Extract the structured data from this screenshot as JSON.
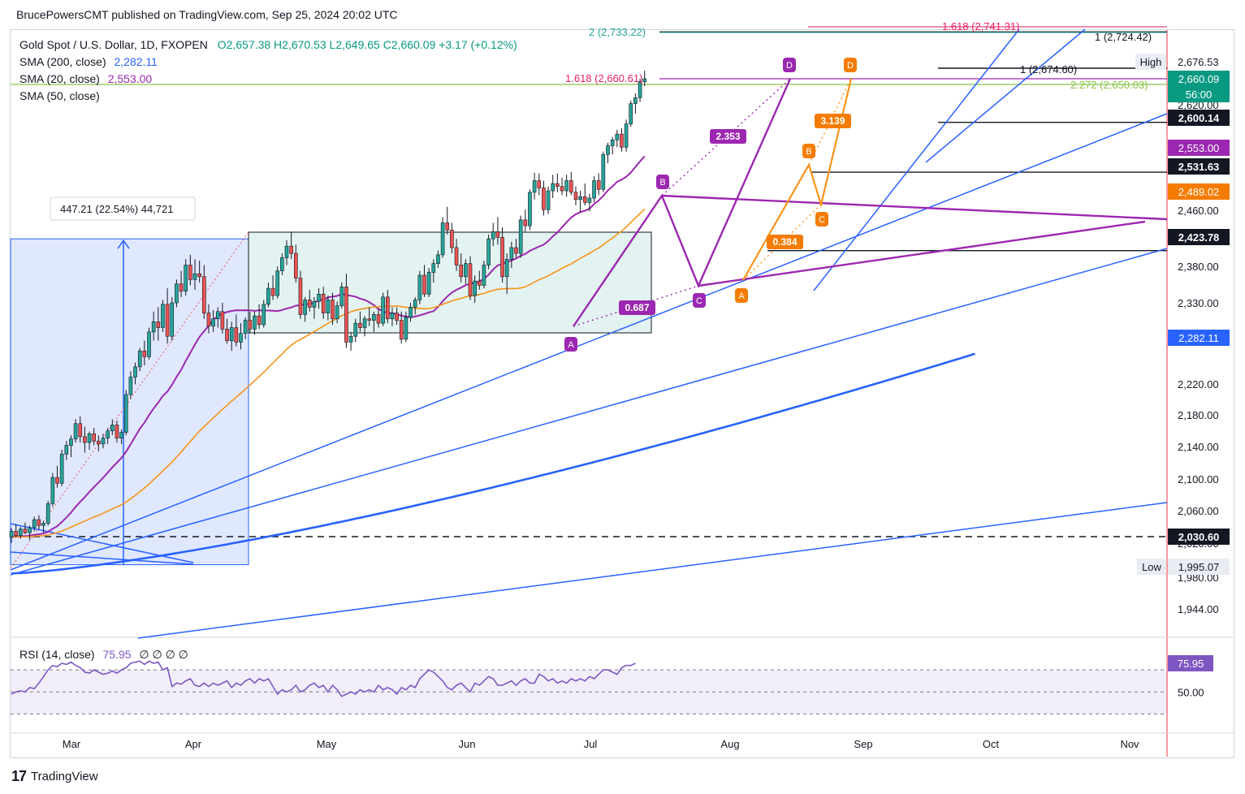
{
  "publisher_line": "BrucePowersCMT published on TradingView.com, Sep 25, 2024 20:02 UTC",
  "legend": {
    "symbol": "Gold Spot / U.S. Dollar, 1D, FXOPEN",
    "ohlc": "O2,657.38 H2,670.53 L2,649.65 C2,660.09 +3.17 (+0.12%)",
    "sma200_label": "SMA (200, close)",
    "sma200_value": "2,282.11",
    "sma20_label": "SMA (20, close)",
    "sma20_value": "2,553.00",
    "sma50_label": "SMA (50, close)"
  },
  "rsi_legend": {
    "label": "RSI (14, close)",
    "value": "75.95",
    "extra": "∅ ∅ ∅ ∅"
  },
  "footer": {
    "brand": "TradingView"
  },
  "colors": {
    "up": "#26a69a",
    "down": "#ef5350",
    "sma20": "#9c27b0",
    "sma50": "#f7931a",
    "sma200": "#2962ff",
    "trend": "#2962ff",
    "rsi": "#7e57c2",
    "fib": "#e91e63",
    "fib_green": "#8bc34a"
  },
  "chart_data": [
    {
      "type": "candlestick",
      "title": "Gold Spot / U.S. Dollar, 1D, FXOPEN",
      "x_ticks": [
        "Mar",
        "Apr",
        "May",
        "Jun",
        "Jul",
        "Aug",
        "Sep",
        "Oct",
        "Nov"
      ],
      "y_ticks": [
        "2,676.53",
        "2,620.00",
        "2,460.00",
        "2,380.00",
        "2,330.00",
        "2,220.00",
        "2,180.00",
        "2,140.00",
        "2,100.00",
        "2,060.00",
        "2,020.00",
        "1,980.00",
        "1,944.00"
      ],
      "ylim": [
        1920,
        2760
      ],
      "price_labels": [
        {
          "text": "High",
          "kind": "note"
        },
        {
          "text": "2,660.09",
          "kind": "last_price"
        },
        {
          "text": "56:00",
          "kind": "countdown"
        },
        {
          "text": "2,600.14",
          "kind": "level"
        },
        {
          "text": "2,553.00",
          "kind": "sma20"
        },
        {
          "text": "2,531.63",
          "kind": "level"
        },
        {
          "text": "2,489.02",
          "kind": "sma50"
        },
        {
          "text": "2,423.78",
          "kind": "level"
        },
        {
          "text": "2,282.11",
          "kind": "sma200"
        },
        {
          "text": "2,030.60",
          "kind": "level"
        },
        {
          "text": "Low",
          "kind": "note"
        },
        {
          "text": "1,995.07",
          "kind": "note"
        }
      ],
      "horizontal_levels": [
        2724.42,
        2674.6,
        2600.14,
        2531.63,
        2423.78,
        2030.6
      ],
      "fib_labels": [
        {
          "text": "2 (2,733.22)",
          "color": "#26a69a"
        },
        {
          "text": "1.618 (2,741.31)",
          "color": "#e91e63"
        },
        {
          "text": "1 (2,724.42)",
          "color": "#131722"
        },
        {
          "text": "1 (2,674.60)",
          "color": "#131722"
        },
        {
          "text": "1.618 (2,660.61)",
          "color": "#e91e63"
        },
        {
          "text": "2.272 (2,650.03)",
          "color": "#8bc34a"
        }
      ],
      "measure_box": {
        "text": "447.21 (22.54%) 44,721",
        "from": 1992,
        "to": 2440
      },
      "harmonic_purple": {
        "points": [
          "A",
          "B",
          "C",
          "D"
        ],
        "prices": [
          2293,
          2484,
          2353,
          2668
        ],
        "ratios": [
          "0.687",
          "2.353"
        ]
      },
      "harmonic_orange": {
        "points": [
          "A",
          "B",
          "C",
          "D"
        ],
        "prices": [
          2364,
          2531,
          2472,
          2668
        ],
        "ratios": [
          "0.384",
          "3.139"
        ]
      },
      "ohlc": [
        [
          2030,
          2042,
          2022,
          2038
        ],
        [
          2038,
          2048,
          2030,
          2032
        ],
        [
          2032,
          2044,
          2028,
          2041
        ],
        [
          2041,
          2050,
          2034,
          2036
        ],
        [
          2036,
          2046,
          2026,
          2043
        ],
        [
          2043,
          2058,
          2038,
          2054
        ],
        [
          2054,
          2060,
          2040,
          2046
        ],
        [
          2046,
          2052,
          2036,
          2049
        ],
        [
          2049,
          2080,
          2046,
          2076
        ],
        [
          2076,
          2118,
          2072,
          2112
        ],
        [
          2112,
          2128,
          2098,
          2104
        ],
        [
          2104,
          2150,
          2100,
          2144
        ],
        [
          2144,
          2162,
          2136,
          2156
        ],
        [
          2156,
          2170,
          2140,
          2165
        ],
        [
          2165,
          2192,
          2160,
          2186
        ],
        [
          2186,
          2196,
          2160,
          2168
        ],
        [
          2168,
          2182,
          2146,
          2160
        ],
        [
          2160,
          2175,
          2150,
          2172
        ],
        [
          2172,
          2180,
          2156,
          2162
        ],
        [
          2162,
          2170,
          2148,
          2158
        ],
        [
          2158,
          2172,
          2152,
          2166
        ],
        [
          2166,
          2180,
          2158,
          2176
        ],
        [
          2176,
          2192,
          2170,
          2184
        ],
        [
          2184,
          2190,
          2160,
          2166
        ],
        [
          2166,
          2178,
          2158,
          2174
        ],
        [
          2174,
          2232,
          2170,
          2226
        ],
        [
          2226,
          2258,
          2220,
          2250
        ],
        [
          2250,
          2270,
          2240,
          2264
        ],
        [
          2264,
          2290,
          2258,
          2286
        ],
        [
          2286,
          2300,
          2266,
          2278
        ],
        [
          2278,
          2318,
          2274,
          2312
        ],
        [
          2312,
          2340,
          2300,
          2326
        ],
        [
          2326,
          2346,
          2300,
          2318
        ],
        [
          2318,
          2356,
          2312,
          2350
        ],
        [
          2350,
          2372,
          2296,
          2306
        ],
        [
          2306,
          2360,
          2300,
          2352
        ],
        [
          2352,
          2384,
          2346,
          2378
        ],
        [
          2378,
          2396,
          2360,
          2368
        ],
        [
          2368,
          2412,
          2362,
          2404
        ],
        [
          2404,
          2418,
          2376,
          2384
        ],
        [
          2384,
          2412,
          2370,
          2392
        ],
        [
          2392,
          2410,
          2380,
          2388
        ],
        [
          2388,
          2404,
          2330,
          2338
        ],
        [
          2338,
          2350,
          2310,
          2320
        ],
        [
          2320,
          2342,
          2312,
          2330
        ],
        [
          2330,
          2346,
          2318,
          2340
        ],
        [
          2340,
          2352,
          2310,
          2316
        ],
        [
          2316,
          2330,
          2296,
          2300
        ],
        [
          2300,
          2326,
          2286,
          2318
        ],
        [
          2318,
          2336,
          2292,
          2298
        ],
        [
          2298,
          2324,
          2288,
          2310
        ],
        [
          2310,
          2332,
          2302,
          2328
        ],
        [
          2328,
          2340,
          2310,
          2316
        ],
        [
          2316,
          2340,
          2308,
          2334
        ],
        [
          2334,
          2350,
          2316,
          2322
        ],
        [
          2322,
          2356,
          2318,
          2350
        ],
        [
          2350,
          2380,
          2346,
          2372
        ],
        [
          2372,
          2390,
          2356,
          2362
        ],
        [
          2362,
          2402,
          2358,
          2396
        ],
        [
          2396,
          2420,
          2390,
          2414
        ],
        [
          2414,
          2438,
          2404,
          2430
        ],
        [
          2430,
          2450,
          2412,
          2420
        ],
        [
          2420,
          2432,
          2380,
          2386
        ],
        [
          2386,
          2396,
          2330,
          2336
        ],
        [
          2336,
          2360,
          2326,
          2356
        ],
        [
          2356,
          2370,
          2340,
          2346
        ],
        [
          2346,
          2360,
          2330,
          2354
        ],
        [
          2354,
          2372,
          2344,
          2364
        ],
        [
          2364,
          2374,
          2330,
          2338
        ],
        [
          2338,
          2362,
          2328,
          2356
        ],
        [
          2356,
          2366,
          2322,
          2330
        ],
        [
          2330,
          2354,
          2324,
          2348
        ],
        [
          2348,
          2380,
          2344,
          2374
        ],
        [
          2374,
          2392,
          2290,
          2298
        ],
        [
          2298,
          2312,
          2286,
          2306
        ],
        [
          2306,
          2330,
          2298,
          2324
        ],
        [
          2324,
          2340,
          2312,
          2318
        ],
        [
          2318,
          2334,
          2306,
          2330
        ],
        [
          2330,
          2346,
          2320,
          2328
        ],
        [
          2328,
          2340,
          2312,
          2336
        ],
        [
          2336,
          2344,
          2318,
          2324
        ],
        [
          2324,
          2366,
          2320,
          2360
        ],
        [
          2360,
          2370,
          2324,
          2330
        ],
        [
          2330,
          2346,
          2320,
          2338
        ],
        [
          2338,
          2346,
          2322,
          2328
        ],
        [
          2328,
          2340,
          2296,
          2302
        ],
        [
          2302,
          2340,
          2298,
          2332
        ],
        [
          2332,
          2352,
          2326,
          2346
        ],
        [
          2346,
          2360,
          2336,
          2356
        ],
        [
          2356,
          2396,
          2350,
          2390
        ],
        [
          2390,
          2404,
          2360,
          2364
        ],
        [
          2364,
          2400,
          2360,
          2394
        ],
        [
          2394,
          2412,
          2380,
          2406
        ],
        [
          2406,
          2424,
          2400,
          2418
        ],
        [
          2418,
          2470,
          2414,
          2462
        ],
        [
          2462,
          2484,
          2446,
          2452
        ],
        [
          2452,
          2462,
          2420,
          2428
        ],
        [
          2428,
          2440,
          2396,
          2404
        ],
        [
          2404,
          2420,
          2380,
          2388
        ],
        [
          2388,
          2412,
          2378,
          2406
        ],
        [
          2406,
          2416,
          2356,
          2362
        ],
        [
          2362,
          2390,
          2352,
          2382
        ],
        [
          2382,
          2396,
          2370,
          2376
        ],
        [
          2376,
          2410,
          2372,
          2404
        ],
        [
          2404,
          2446,
          2398,
          2440
        ],
        [
          2440,
          2462,
          2430,
          2450
        ],
        [
          2450,
          2470,
          2432,
          2442
        ],
        [
          2442,
          2456,
          2380,
          2388
        ],
        [
          2388,
          2420,
          2364,
          2412
        ],
        [
          2412,
          2436,
          2400,
          2428
        ],
        [
          2428,
          2440,
          2414,
          2420
        ],
        [
          2420,
          2472,
          2414,
          2466
        ],
        [
          2466,
          2480,
          2450,
          2458
        ],
        [
          2458,
          2508,
          2452,
          2504
        ],
        [
          2504,
          2531,
          2494,
          2520
        ],
        [
          2520,
          2530,
          2500,
          2510
        ],
        [
          2510,
          2520,
          2472,
          2480
        ],
        [
          2480,
          2512,
          2474,
          2506
        ],
        [
          2506,
          2528,
          2496,
          2516
        ],
        [
          2516,
          2530,
          2504,
          2512
        ],
        [
          2512,
          2524,
          2500,
          2506
        ],
        [
          2506,
          2528,
          2498,
          2520
        ],
        [
          2520,
          2532,
          2500,
          2504
        ],
        [
          2504,
          2512,
          2486,
          2494
        ],
        [
          2494,
          2506,
          2476,
          2498
        ],
        [
          2498,
          2516,
          2486,
          2490
        ],
        [
          2490,
          2502,
          2478,
          2496
        ],
        [
          2496,
          2526,
          2490,
          2520
        ],
        [
          2520,
          2530,
          2500,
          2508
        ],
        [
          2508,
          2560,
          2504,
          2556
        ],
        [
          2556,
          2572,
          2544,
          2568
        ],
        [
          2568,
          2580,
          2556,
          2576
        ],
        [
          2576,
          2590,
          2566,
          2584
        ],
        [
          2584,
          2592,
          2560,
          2566
        ],
        [
          2566,
          2604,
          2560,
          2598
        ],
        [
          2598,
          2630,
          2594,
          2626
        ],
        [
          2626,
          2640,
          2612,
          2634
        ],
        [
          2634,
          2660,
          2628,
          2656
        ],
        [
          2656,
          2671,
          2650,
          2660
        ]
      ],
      "series": [
        {
          "name": "SMA (20, close)",
          "color": "#9c27b0"
        },
        {
          "name": "SMA (50, close)",
          "color": "#f7931a"
        },
        {
          "name": "SMA (200, close)",
          "color": "#2962ff"
        }
      ]
    },
    {
      "type": "line",
      "title": "RSI (14, close)",
      "y_ticks": [
        "50.00"
      ],
      "ylim": [
        20,
        90
      ],
      "bands": [
        70,
        50,
        30
      ],
      "last_value": "75.95",
      "values": [
        48,
        50,
        51,
        50,
        54,
        53,
        58,
        64,
        70,
        74,
        73,
        76,
        75,
        77,
        74,
        72,
        68,
        67,
        70,
        68,
        66,
        67,
        69,
        67,
        70,
        72,
        76,
        77,
        78,
        75,
        78,
        76,
        77,
        70,
        72,
        55,
        58,
        57,
        60,
        62,
        56,
        55,
        58,
        55,
        58,
        56,
        58,
        60,
        54,
        58,
        56,
        60,
        62,
        58,
        62,
        60,
        62,
        55,
        48,
        52,
        50,
        52,
        56,
        50,
        52,
        56,
        58,
        54,
        56,
        50,
        56,
        52,
        46,
        48,
        50,
        48,
        52,
        50,
        52,
        50,
        56,
        52,
        54,
        52,
        48,
        54,
        52,
        56,
        54,
        62,
        66,
        70,
        68,
        64,
        60,
        54,
        52,
        56,
        58,
        54,
        50,
        58,
        56,
        60,
        64,
        62,
        56,
        56,
        58,
        60,
        56,
        60,
        62,
        58,
        58,
        66,
        64,
        60,
        62,
        58,
        60,
        58,
        62,
        60,
        62,
        60,
        64,
        62,
        66,
        70,
        70,
        68,
        66,
        72,
        74,
        74,
        76
      ]
    }
  ]
}
